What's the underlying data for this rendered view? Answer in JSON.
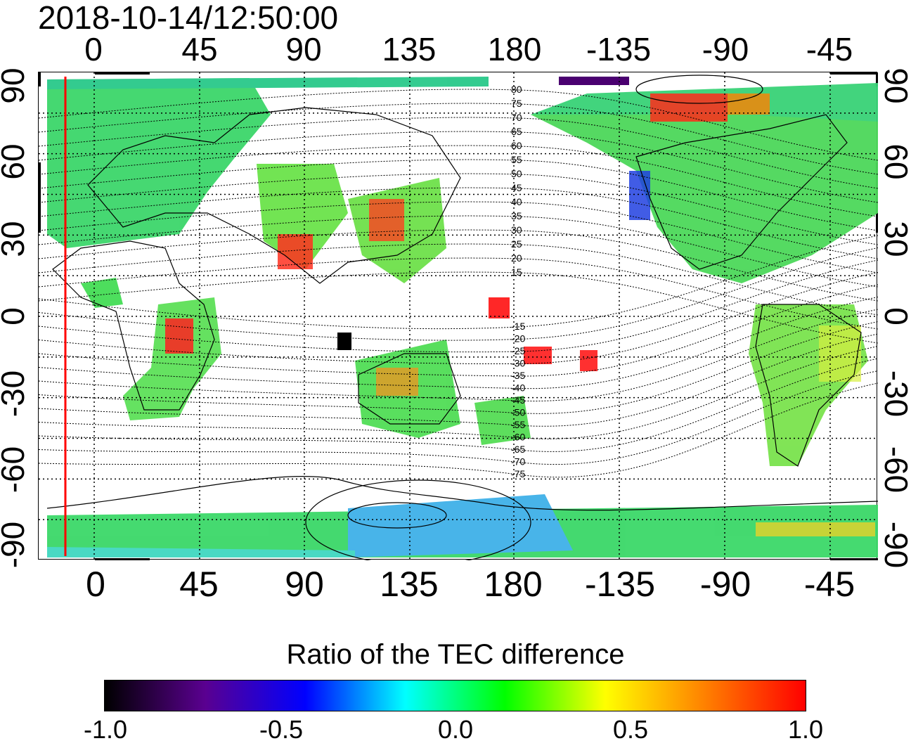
{
  "timestamp": "2018-10-14/12:50:00",
  "map": {
    "lon_ticks": [
      "0",
      "45",
      "90",
      "135",
      "180",
      "-135",
      "-90",
      "-45"
    ],
    "lat_ticks": [
      "90",
      "60",
      "30",
      "0",
      "-30",
      "-60",
      "-90"
    ],
    "mlat_labels": [
      "80",
      "75",
      "70",
      "65",
      "60",
      "55",
      "50",
      "45",
      "40",
      "35",
      "30",
      "25",
      "20",
      "15",
      "-15",
      "-20",
      "-25",
      "-30",
      "-35",
      "-40",
      "-45",
      "-50",
      "-55",
      "-60",
      "-65",
      "-70",
      "-75"
    ],
    "marker_line_color": "#ff0000",
    "grid": "dotted"
  },
  "colorbar": {
    "title": "Ratio of the TEC difference",
    "ticks": [
      "-1.0",
      "-0.5",
      "0.0",
      "0.5",
      "1.0"
    ],
    "range": [
      -1.0,
      1.0
    ],
    "colors": [
      "#000000",
      "#5a0090",
      "#0000ff",
      "#00ffff",
      "#00ff00",
      "#ffff00",
      "#ff8000",
      "#ff0000"
    ]
  }
}
